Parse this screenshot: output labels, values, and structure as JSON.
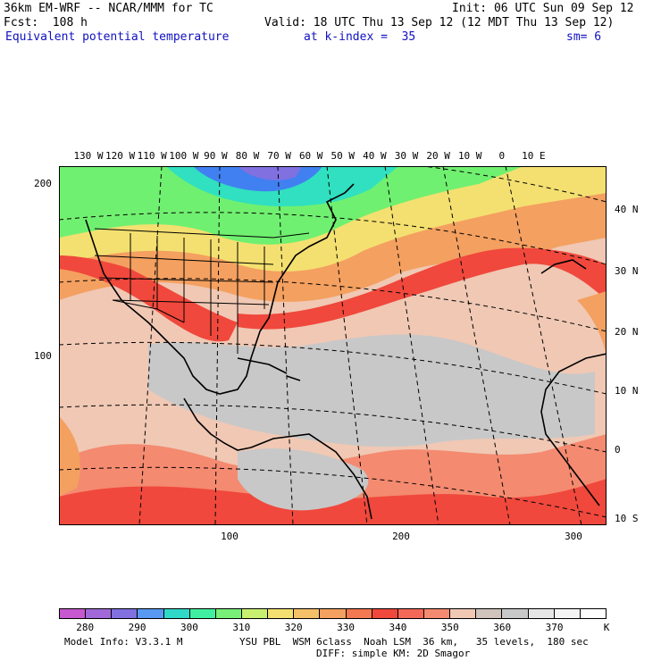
{
  "header": {
    "line1_left": "36km EM-WRF -- NCAR/MMM for TC",
    "line1_right": "Init: 06 UTC Sun 09 Sep 12",
    "line2_left": "Fcst:  108 h",
    "line2_right": "Valid: 18 UTC Thu 13 Sep 12 (12 MDT Thu 13 Sep 12)",
    "line3_field": "Equivalent potential temperature",
    "line3_level": "at k-index =  35",
    "line3_sm": "sm= 6"
  },
  "map": {
    "lon_labels": [
      "130 W",
      "120 W",
      "110 W",
      "100 W",
      "90 W",
      "80 W",
      "70 W",
      "60 W",
      "50 W",
      "40 W",
      "30 W",
      "20 W",
      "10 W",
      "0",
      "10 E"
    ],
    "lat_labels": [
      "40 N",
      "30 N",
      "20 N",
      "10 N",
      "0",
      "10 S"
    ],
    "grid_y_labels": [
      "200",
      "100"
    ],
    "grid_x_labels": [
      "100",
      "200",
      "300"
    ],
    "colors": {
      "warm_red": "#f0483c",
      "salmon": "#f48a70",
      "peach": "#f0c8b4",
      "gray": "#c8c8c8",
      "orange": "#f4a060",
      "yellow": "#f4e070",
      "green": "#70f070",
      "teal": "#30e0c0",
      "blue": "#4080f0",
      "purple": "#8070e0"
    }
  },
  "colorbar": {
    "labels": [
      "280",
      "290",
      "300",
      "310",
      "320",
      "330",
      "340",
      "350",
      "360",
      "370",
      "K"
    ],
    "colors": [
      "#c858d0",
      "#a068d8",
      "#8070e0",
      "#5898f0",
      "#30d8c8",
      "#40f0a0",
      "#78f078",
      "#c8f070",
      "#f4e070",
      "#f4c068",
      "#f4a060",
      "#f47850",
      "#f0483c",
      "#f46858",
      "#f48a70",
      "#f0c8b4",
      "#d0c4bc",
      "#c8c8c8",
      "#e6e6e6",
      "#f4f4f4",
      "#ffffff"
    ]
  },
  "footer": {
    "model_info": "Model Info: V3.3.1 M",
    "physics": "YSU PBL  WSM 6class  Noah LSM  36 km,   35 levels,  180 sec",
    "diff": "DIFF: simple KM: 2D Smagor"
  }
}
